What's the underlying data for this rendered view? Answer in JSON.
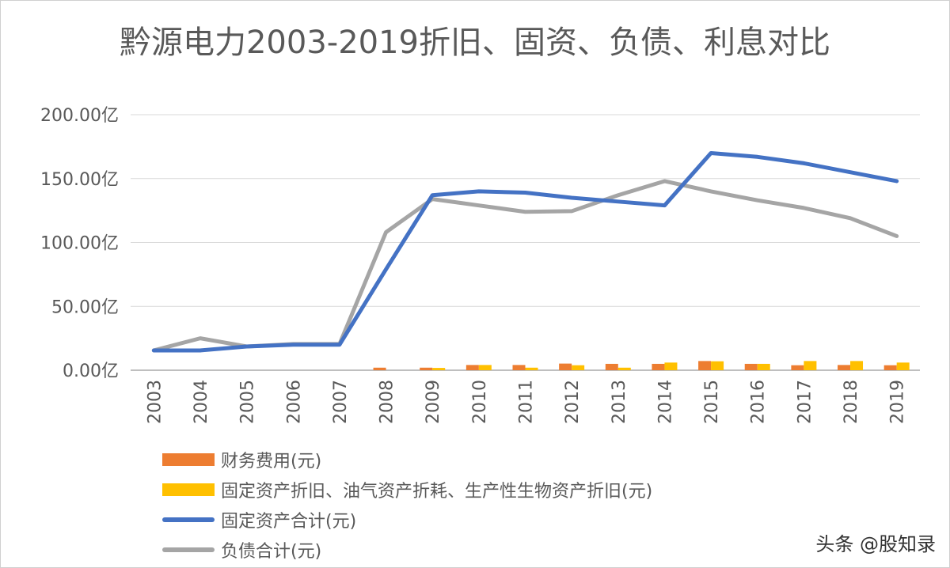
{
  "chart_data": {
    "type": "bar+line",
    "title": "黔源电力2003-2019折旧、固资、负债、利息对比",
    "categories": [
      "2003",
      "2004",
      "2005",
      "2006",
      "2007",
      "2008",
      "2009",
      "2010",
      "2011",
      "2012",
      "2013",
      "2014",
      "2015",
      "2016",
      "2017",
      "2018",
      "2019"
    ],
    "ylim": [
      0,
      200
    ],
    "yticks": [
      "0.00亿",
      "50.00亿",
      "100.00亿",
      "150.00亿",
      "200.00亿"
    ],
    "ytick_values": [
      0,
      50,
      100,
      150,
      200
    ],
    "unit": "亿",
    "grid": true,
    "legend_position": "bottom",
    "series": [
      {
        "name": "财务费用(元)",
        "type": "bar",
        "color": "#ED7D31",
        "values": [
          null,
          null,
          null,
          null,
          null,
          2,
          2,
          4.1,
          4.1,
          5.2,
          5,
          5,
          7.2,
          5,
          3.9,
          4.1,
          3.9
        ]
      },
      {
        "name": "固定资产折旧、油气资产折耗、生产性生物资产折旧(元)",
        "type": "bar",
        "color": "#FFC000",
        "values": [
          null,
          null,
          null,
          null,
          null,
          0,
          1.8,
          4.1,
          2,
          3.9,
          2,
          6,
          7,
          5,
          7.2,
          7.2,
          6
        ]
      },
      {
        "name": "固定资产合计(元)",
        "type": "line",
        "color": "#4472C4",
        "values": [
          15.5,
          15.5,
          18.6,
          20,
          20,
          79,
          137,
          140,
          139,
          135,
          132,
          129,
          170,
          167,
          162,
          155,
          148
        ]
      },
      {
        "name": "负债合计(元)",
        "type": "line",
        "color": "#A5A5A5",
        "values": [
          15.5,
          25,
          18.6,
          20.5,
          20.5,
          108,
          134,
          129,
          124,
          124.5,
          137,
          148,
          140,
          133,
          127,
          119,
          105
        ]
      }
    ]
  },
  "watermark": "头条 @股知录"
}
